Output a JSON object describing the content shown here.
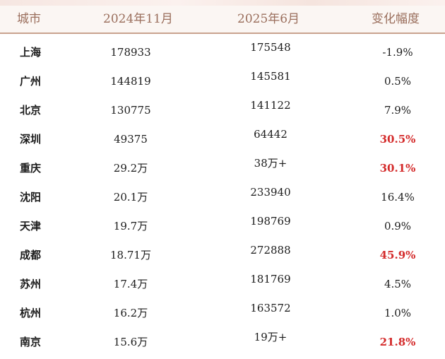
{
  "table": {
    "headers": {
      "city": "城市",
      "nov_2024": "2024年11月",
      "jun_2025": "2025年6月",
      "change": "变化幅度"
    },
    "rows": [
      {
        "city": "上海",
        "nov_2024": "178933",
        "jun_2025": "175548",
        "change": "-1.9%",
        "highlight": false
      },
      {
        "city": "广州",
        "nov_2024": "144819",
        "jun_2025": "145581",
        "change": "0.5%",
        "highlight": false
      },
      {
        "city": "北京",
        "nov_2024": "130775",
        "jun_2025": "141122",
        "change": "7.9%",
        "highlight": false
      },
      {
        "city": "深圳",
        "nov_2024": "49375",
        "jun_2025": "64442",
        "change": "30.5%",
        "highlight": true
      },
      {
        "city": "重庆",
        "nov_2024": "29.2万",
        "jun_2025": "38万+",
        "change": "30.1%",
        "highlight": true
      },
      {
        "city": "沈阳",
        "nov_2024": "20.1万",
        "jun_2025": "233940",
        "change": "16.4%",
        "highlight": false
      },
      {
        "city": "天津",
        "nov_2024": "19.7万",
        "jun_2025": "198769",
        "change": "0.9%",
        "highlight": false
      },
      {
        "city": "成都",
        "nov_2024": "18.71万",
        "jun_2025": "272888",
        "change": "45.9%",
        "highlight": true
      },
      {
        "city": "苏州",
        "nov_2024": "17.4万",
        "jun_2025": "181769",
        "change": "4.5%",
        "highlight": false
      },
      {
        "city": "杭州",
        "nov_2024": "16.2万",
        "jun_2025": "163572",
        "change": "1.0%",
        "highlight": false
      },
      {
        "city": "南京",
        "nov_2024": "15.6万",
        "jun_2025": "19万+",
        "change": "21.8%",
        "highlight": true
      }
    ]
  },
  "colors": {
    "header_text": "#9a6e5c",
    "header_rule": "#c9a28e",
    "highlight": "#d42b2b",
    "body_text": "#1c1c1c"
  }
}
